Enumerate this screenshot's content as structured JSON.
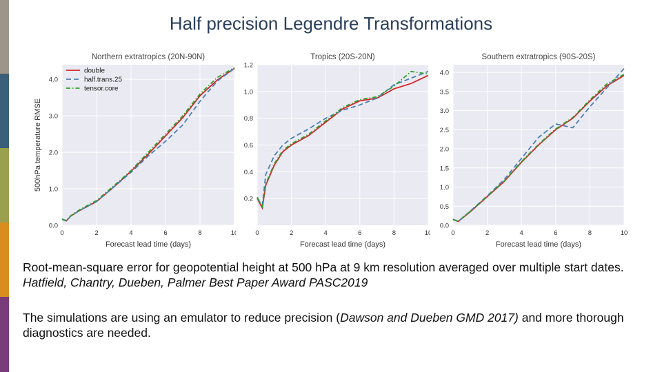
{
  "slide": {
    "title": "Half precision Legendre Transformations",
    "accent_colors": [
      "#9e958a",
      "#3b5f78",
      "#2a6a8e",
      "#9aa04e",
      "#d98d1f",
      "#7a3b7a"
    ]
  },
  "caption1": {
    "plain": "Root-mean-square error for geopotential height at 500 hPa at 9 km resolution averaged over multiple start dates. ",
    "italic": "Hatfield, Chantry, Dueben, Palmer Best Paper Award PASC2019"
  },
  "caption2": {
    "part1": "The simulations are using an emulator to reduce precision (",
    "italic": "Dawson and Dueben GMD 2017)",
    "part2": " and more thorough diagnostics are needed."
  },
  "chart_data": [
    {
      "type": "line",
      "title": "Northern extratropics (20N-90N)",
      "xlabel": "Forecast lead time (days)",
      "ylabel": "500hPa temperature RMSE",
      "xlim": [
        0,
        10
      ],
      "ylim": [
        0,
        4.4
      ],
      "xticks": [
        "0",
        "2",
        "4",
        "6",
        "8",
        "10"
      ],
      "yticks": [
        "0.0",
        "1.0",
        "2.0",
        "3.0",
        "4.0"
      ],
      "yticks_values": [
        0,
        1,
        2,
        3,
        4
      ],
      "grid": true,
      "legend_position": "top-left",
      "x": [
        0,
        0.25,
        0.5,
        1,
        2,
        3,
        4,
        5,
        6,
        7,
        8,
        9,
        10
      ],
      "series": [
        {
          "name": "double",
          "color": "#d62728",
          "dash": "solid",
          "values": [
            0.16,
            0.12,
            0.25,
            0.4,
            0.65,
            1.05,
            1.48,
            1.95,
            2.45,
            2.95,
            3.55,
            3.98,
            4.3
          ]
        },
        {
          "name": "half.trans.25",
          "color": "#4a7fb5",
          "dash": "dashed",
          "values": [
            0.16,
            0.12,
            0.25,
            0.4,
            0.65,
            1.05,
            1.45,
            1.9,
            2.3,
            2.75,
            3.4,
            3.95,
            4.3
          ]
        },
        {
          "name": "tensor.core",
          "color": "#2ca02c",
          "dash": "dashdot",
          "values": [
            0.17,
            0.13,
            0.26,
            0.42,
            0.68,
            1.08,
            1.5,
            2.0,
            2.5,
            3.0,
            3.6,
            4.05,
            4.32
          ]
        }
      ]
    },
    {
      "type": "line",
      "title": "Tropics (20S-20N)",
      "xlabel": "Forecast lead time (days)",
      "ylabel": "",
      "xlim": [
        0,
        10
      ],
      "ylim": [
        0,
        1.2
      ],
      "xticks": [
        "0",
        "2",
        "4",
        "6",
        "8",
        "10"
      ],
      "yticks": [
        "0.2",
        "0.4",
        "0.6",
        "0.8",
        "1.0",
        "1.2"
      ],
      "yticks_values": [
        0.2,
        0.4,
        0.6,
        0.8,
        1.0,
        1.2
      ],
      "grid": true,
      "x": [
        0,
        0.3,
        0.5,
        1,
        1.5,
        2,
        3,
        4,
        5,
        6,
        7,
        8,
        9,
        10
      ],
      "series": [
        {
          "name": "double",
          "color": "#d62728",
          "dash": "solid",
          "values": [
            0.2,
            0.13,
            0.3,
            0.45,
            0.55,
            0.6,
            0.67,
            0.77,
            0.87,
            0.93,
            0.95,
            1.02,
            1.06,
            1.12
          ]
        },
        {
          "name": "half.trans.25",
          "color": "#4a7fb5",
          "dash": "dashed",
          "values": [
            0.2,
            0.15,
            0.38,
            0.52,
            0.6,
            0.65,
            0.72,
            0.8,
            0.86,
            0.9,
            0.95,
            1.05,
            1.1,
            1.15
          ]
        },
        {
          "name": "tensor.core",
          "color": "#2ca02c",
          "dash": "dashdot",
          "values": [
            0.21,
            0.14,
            0.31,
            0.46,
            0.56,
            0.61,
            0.68,
            0.78,
            0.88,
            0.94,
            0.96,
            1.04,
            1.15,
            1.13
          ]
        }
      ]
    },
    {
      "type": "line",
      "title": "Southern extratropics (90S-20S)",
      "xlabel": "Forecast lead time (days)",
      "ylabel": "",
      "xlim": [
        0,
        10
      ],
      "ylim": [
        0,
        4.2
      ],
      "xticks": [
        "0",
        "2",
        "4",
        "6",
        "8",
        "10"
      ],
      "yticks": [
        "0.0",
        "0.5",
        "1.0",
        "1.5",
        "2.0",
        "2.5",
        "3.0",
        "3.5",
        "4.0"
      ],
      "yticks_values": [
        0,
        0.5,
        1.0,
        1.5,
        2.0,
        2.5,
        3.0,
        3.5,
        4.0
      ],
      "grid": true,
      "x": [
        0,
        0.3,
        1,
        2,
        3,
        4,
        5,
        6,
        7,
        8,
        9,
        10
      ],
      "series": [
        {
          "name": "double",
          "color": "#d62728",
          "dash": "solid",
          "values": [
            0.15,
            0.1,
            0.35,
            0.75,
            1.15,
            1.65,
            2.1,
            2.5,
            2.8,
            3.25,
            3.65,
            3.92
          ]
        },
        {
          "name": "half.trans.25",
          "color": "#4a7fb5",
          "dash": "dashed",
          "values": [
            0.16,
            0.1,
            0.37,
            0.77,
            1.2,
            1.75,
            2.3,
            2.65,
            2.55,
            3.1,
            3.6,
            4.1
          ]
        },
        {
          "name": "tensor.core",
          "color": "#2ca02c",
          "dash": "dashdot",
          "values": [
            0.15,
            0.11,
            0.36,
            0.76,
            1.16,
            1.67,
            2.12,
            2.52,
            2.82,
            3.28,
            3.7,
            3.95
          ]
        }
      ]
    }
  ]
}
